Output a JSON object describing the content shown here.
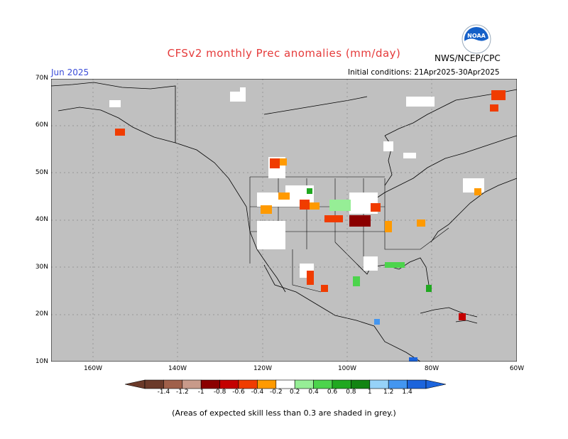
{
  "header": {
    "title": "CFSv2 monthly Prec anomalies (mm/day)",
    "agency": "NWS/NCEP/CPC",
    "month": "Jun 2025",
    "initial_conditions": "Initial conditions: 21Apr2025-30Apr2025",
    "logo_text": "NOAA"
  },
  "axes": {
    "lat_labels": [
      "70N",
      "60N",
      "50N",
      "40N",
      "30N",
      "20N",
      "10N"
    ],
    "lon_labels": [
      "160W",
      "140W",
      "120W",
      "100W",
      "80W",
      "60W"
    ]
  },
  "colorbar": {
    "labels": [
      "-1.4",
      "-1.2",
      "-1",
      "-0.8",
      "-0.6",
      "-0.4",
      "-0.2",
      "0.2",
      "0.4",
      "0.6",
      "0.8",
      "1",
      "1.2",
      "1.4"
    ],
    "colors": [
      "#6b3a2a",
      "#a0604a",
      "#c89a8a",
      "#8b0000",
      "#c40000",
      "#f03c00",
      "#ff9a00",
      "#ffffff",
      "#96ee96",
      "#4cd44c",
      "#20a820",
      "#128412",
      "#96d2f8",
      "#4496f0",
      "#1c64dc"
    ]
  },
  "colors": {
    "land_low_skill": "#c0c0c0",
    "ocean_low_skill": "#c0c0c0",
    "title": "#e53a3a",
    "month": "#3a4cd8"
  },
  "footer": {
    "note": "(Areas of expected skill less than 0.3 are shaded in grey.)"
  }
}
